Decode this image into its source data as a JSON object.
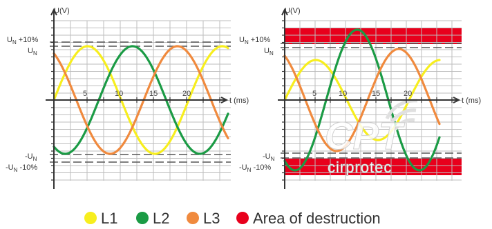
{
  "colors": {
    "L1": "#f7ee1e",
    "L2": "#1b9b45",
    "L3": "#f08a3e",
    "destruction": "#e8001c",
    "grid": "#bdbdbd",
    "axis": "#333333",
    "dash": "#555555"
  },
  "left_chart": {
    "y_axis_label": "U(V)",
    "x_axis_label": "t (ms)",
    "x_ticks": [
      "5",
      "10",
      "15",
      "20"
    ],
    "levels": {
      "un_plus_10": {
        "main": "U",
        "sub": "N",
        "suffix": " +10%"
      },
      "un": {
        "main": "U",
        "sub": "N",
        "suffix": ""
      },
      "minus_un": {
        "main": "-U",
        "sub": "N",
        "suffix": ""
      },
      "minus_un_minus_10": {
        "main": "-U",
        "sub": "N",
        "suffix": " -10%"
      }
    }
  },
  "right_chart": {
    "y_axis_label": "U(V)",
    "x_axis_label": "t (ms)",
    "x_ticks": [
      "5",
      "10",
      "15",
      "20"
    ],
    "levels": {
      "un_plus_10": {
        "main": "U",
        "sub": "N",
        "suffix": " +10%"
      },
      "un": {
        "main": "U",
        "sub": "N",
        "suffix": ""
      },
      "minus_un": {
        "main": "-U",
        "sub": "N",
        "suffix": ""
      },
      "minus_un_minus_10": {
        "main": "-U",
        "sub": "N",
        "suffix": " -10%"
      }
    }
  },
  "watermark": {
    "logo_text": "CPT",
    "brand": "cirprotec"
  },
  "legend": [
    {
      "label": "L1",
      "color": "#f7ee1e"
    },
    {
      "label": "L2",
      "color": "#1b9b45"
    },
    {
      "label": "L3",
      "color": "#f08a3e"
    },
    {
      "label": "Area of destruction",
      "color": "#e8001c"
    }
  ]
}
